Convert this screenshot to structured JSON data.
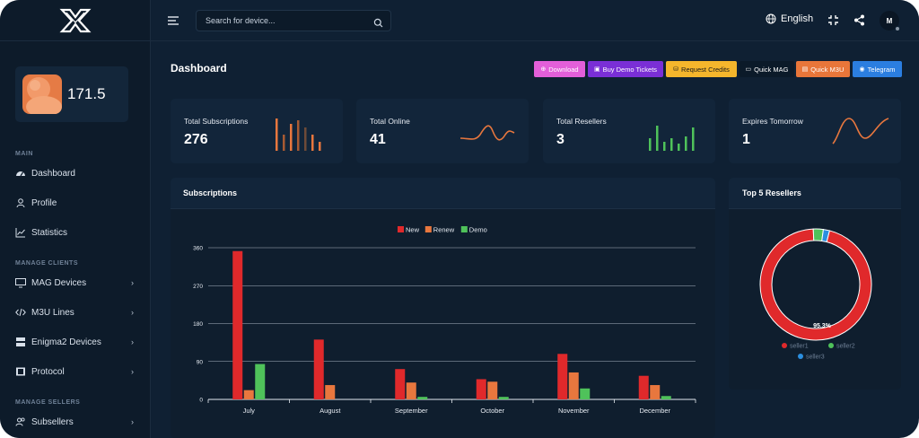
{
  "sidebar": {
    "balance": "171.5",
    "sections": {
      "main": "MAIN",
      "manage_clients": "MANAGE CLIENTS",
      "manage_sellers": "MANAGE SELLERS"
    },
    "items": [
      {
        "label": "Dashboard",
        "icon": "dashboard-icon"
      },
      {
        "label": "Profile",
        "icon": "user-icon"
      },
      {
        "label": "Statistics",
        "icon": "chart-icon"
      },
      {
        "label": "MAG Devices",
        "icon": "monitor-icon"
      },
      {
        "label": "M3U Lines",
        "icon": "code-icon"
      },
      {
        "label": "Enigma2 Devices",
        "icon": "server-icon"
      },
      {
        "label": "Protocol",
        "icon": "film-icon"
      },
      {
        "label": "Subsellers",
        "icon": "users-icon"
      }
    ]
  },
  "header": {
    "search_placeholder": "Search for device...",
    "language": "English",
    "avatar_initial": "M"
  },
  "page": {
    "title": "Dashboard",
    "buttons": [
      {
        "label": "Download",
        "color": "#e35fd9"
      },
      {
        "label": "Buy Demo Tickets",
        "color": "#7a2fd6"
      },
      {
        "label": "Request Credits",
        "color": "#f5b62c"
      },
      {
        "label": "Quick MAG",
        "color": "#0b1a29"
      },
      {
        "label": "Quick M3U",
        "color": "#e8763a"
      },
      {
        "label": "Telegram",
        "color": "#2b7ee0"
      }
    ]
  },
  "stats": [
    {
      "label": "Total Subscriptions",
      "value": "276"
    },
    {
      "label": "Total Online",
      "value": "41"
    },
    {
      "label": "Total Resellers",
      "value": "3"
    },
    {
      "label": "Expires Tomorrow",
      "value": "1"
    }
  ],
  "panels": {
    "subscriptions_title": "Subscriptions",
    "resellers_title": "Top 5 Resellers"
  },
  "chart_data": [
    {
      "type": "bar",
      "title": "",
      "categories": [
        "July",
        "August",
        "September",
        "October",
        "November",
        "December"
      ],
      "series": [
        {
          "name": "New",
          "color": "#e0292b",
          "values": [
            352,
            142,
            72,
            48,
            108,
            56
          ]
        },
        {
          "name": "Renew",
          "color": "#e8773e",
          "values": [
            22,
            34,
            40,
            42,
            64,
            34
          ]
        },
        {
          "name": "Demo",
          "color": "#4fc25a",
          "values": [
            84,
            0,
            6,
            6,
            26,
            8
          ]
        }
      ],
      "y_ticks": [
        "0",
        "90",
        "180",
        "270",
        "360"
      ],
      "ylim": [
        0,
        360
      ],
      "grid": true,
      "legend": "top-center"
    },
    {
      "type": "pie",
      "title": "",
      "labels": [
        "seller1",
        "seller2",
        "seller3"
      ],
      "colors": [
        "#e0292b",
        "#4fc25a",
        "#2b8fe0"
      ],
      "values": [
        95.3,
        2.9,
        1.8
      ],
      "slice_label": "95.3%",
      "legend": "bottom"
    }
  ]
}
